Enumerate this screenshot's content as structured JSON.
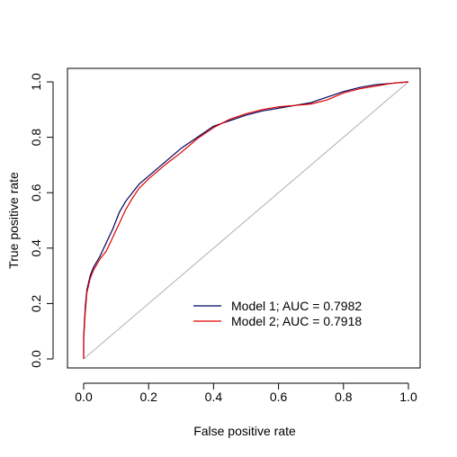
{
  "chart_data": {
    "type": "line",
    "xlabel": "False positive rate",
    "ylabel": "True positive rate",
    "xlim": [
      0,
      1
    ],
    "ylim": [
      0,
      1
    ],
    "grid": false,
    "xticks": [
      "0.0",
      "0.2",
      "0.4",
      "0.6",
      "0.8",
      "1.0"
    ],
    "yticks": [
      "0.0",
      "0.2",
      "0.4",
      "0.6",
      "0.8",
      "1.0"
    ],
    "legend": {
      "placement": "bottom-right",
      "entries": [
        "Model 1; AUC = 0.7982",
        "Model 2; AUC = 0.7918"
      ]
    },
    "reference_line": {
      "x": [
        0,
        1
      ],
      "y": [
        0,
        1
      ],
      "color": "#b0b0b0"
    },
    "series": [
      {
        "name": "Model 1; AUC = 0.7982",
        "color": "#00005a",
        "x": [
          0,
          0,
          0.005,
          0.01,
          0.02,
          0.03,
          0.05,
          0.07,
          0.09,
          0.11,
          0.13,
          0.15,
          0.17,
          0.2,
          0.25,
          0.3,
          0.35,
          0.4,
          0.45,
          0.5,
          0.55,
          0.6,
          0.65,
          0.7,
          0.75,
          0.8,
          0.85,
          0.9,
          0.95,
          1.0
        ],
        "y": [
          0,
          0.08,
          0.19,
          0.25,
          0.3,
          0.33,
          0.37,
          0.42,
          0.47,
          0.53,
          0.57,
          0.6,
          0.63,
          0.66,
          0.71,
          0.76,
          0.8,
          0.84,
          0.86,
          0.88,
          0.895,
          0.905,
          0.915,
          0.925,
          0.945,
          0.965,
          0.98,
          0.99,
          0.995,
          1.0
        ]
      },
      {
        "name": "Model 2; AUC = 0.7918",
        "color": "#e00000",
        "x": [
          0,
          0,
          0.005,
          0.01,
          0.02,
          0.03,
          0.05,
          0.07,
          0.09,
          0.11,
          0.13,
          0.15,
          0.17,
          0.2,
          0.25,
          0.3,
          0.35,
          0.4,
          0.45,
          0.5,
          0.55,
          0.6,
          0.65,
          0.7,
          0.75,
          0.8,
          0.85,
          0.9,
          0.95,
          1.0
        ],
        "y": [
          0,
          0.07,
          0.17,
          0.24,
          0.29,
          0.32,
          0.36,
          0.39,
          0.44,
          0.49,
          0.54,
          0.58,
          0.615,
          0.65,
          0.7,
          0.745,
          0.795,
          0.835,
          0.865,
          0.885,
          0.9,
          0.91,
          0.915,
          0.92,
          0.935,
          0.96,
          0.975,
          0.985,
          0.995,
          1.0
        ]
      }
    ]
  }
}
